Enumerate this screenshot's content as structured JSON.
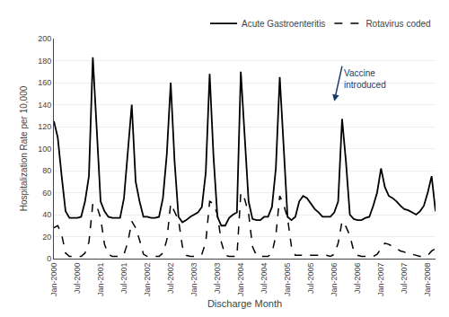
{
  "chart_data": {
    "type": "line",
    "xlabel": "Discharge Month",
    "ylabel": "Hospitalization Rate per 10,000",
    "categories": [
      "Jan-2000",
      null,
      null,
      null,
      null,
      null,
      "Jul-2000",
      null,
      null,
      null,
      null,
      null,
      "Jan-2001",
      null,
      null,
      null,
      null,
      null,
      "Jul-2001",
      null,
      null,
      null,
      null,
      null,
      "Jan-2002",
      null,
      null,
      null,
      null,
      null,
      "Jul-2002",
      null,
      null,
      null,
      null,
      null,
      "Jan-2003",
      null,
      null,
      null,
      null,
      null,
      "Jul-2003",
      null,
      null,
      null,
      null,
      null,
      "Jan-2004",
      null,
      null,
      null,
      null,
      null,
      "Jul-2004",
      null,
      null,
      null,
      null,
      null,
      "Jan-2005",
      null,
      null,
      null,
      null,
      null,
      "Jul-2005",
      null,
      null,
      null,
      null,
      null,
      "Jan-2006",
      null,
      null,
      null,
      null,
      null,
      "Jul-2006",
      null,
      null,
      null,
      null,
      null,
      "Jan-2007",
      null,
      null,
      null,
      null,
      null,
      "Jul-2007",
      null,
      null,
      null,
      null,
      null,
      "Jan-2008",
      null,
      null
    ],
    "series": [
      {
        "name": "Acute Gastroenteritis",
        "color": "black",
        "line_style": "solid",
        "values": [
          125,
          110,
          75,
          43,
          37,
          37,
          37,
          38,
          52,
          75,
          183,
          118,
          52,
          43,
          38,
          37,
          37,
          37,
          55,
          95,
          140,
          70,
          52,
          38,
          38,
          37,
          37,
          38,
          55,
          95,
          160,
          88,
          38,
          33,
          35,
          38,
          40,
          42,
          47,
          78,
          168,
          92,
          38,
          30,
          30,
          37,
          40,
          42,
          170,
          112,
          52,
          36,
          35,
          35,
          38,
          38,
          47,
          82,
          165,
          102,
          38,
          35,
          38,
          52,
          57,
          55,
          50,
          45,
          42,
          38,
          38,
          38,
          42,
          52,
          127,
          88,
          40,
          36,
          35,
          35,
          37,
          38,
          48,
          60,
          82,
          65,
          57,
          55,
          52,
          48,
          45,
          44,
          42,
          40,
          43,
          48,
          60,
          75,
          43
        ]
      },
      {
        "name": "Rotavirus coded",
        "color": "black",
        "line_style": "dash",
        "values": [
          28,
          30,
          22,
          5,
          2,
          2,
          2,
          2,
          5,
          15,
          50,
          48,
          37,
          13,
          4,
          2,
          2,
          2,
          4,
          15,
          34,
          28,
          17,
          4,
          2,
          2,
          2,
          2,
          5,
          17,
          50,
          43,
          35,
          11,
          3,
          2,
          2,
          2,
          4,
          15,
          52,
          50,
          40,
          15,
          3,
          2,
          2,
          2,
          60,
          54,
          41,
          11,
          3,
          2,
          2,
          2,
          5,
          21,
          57,
          49,
          37,
          11,
          3,
          3,
          3,
          3,
          3,
          3,
          3,
          3,
          3,
          2,
          4,
          14,
          34,
          29,
          21,
          7,
          3,
          2,
          2,
          2,
          2,
          4,
          9,
          14,
          13,
          11,
          9,
          7,
          6,
          4,
          4,
          3,
          2,
          2,
          3,
          7,
          9
        ]
      }
    ],
    "ylim": [
      0,
      200
    ],
    "yticks": [
      0,
      20,
      40,
      60,
      80,
      100,
      120,
      140,
      160,
      180,
      200
    ],
    "grid": "y",
    "legend": "upper right",
    "annotations": [
      {
        "text": "Vaccine\nintroduced",
        "x": 72,
        "y": 143,
        "text_x": 74,
        "text_y": 175,
        "color": "#1a3a6b"
      }
    ]
  }
}
